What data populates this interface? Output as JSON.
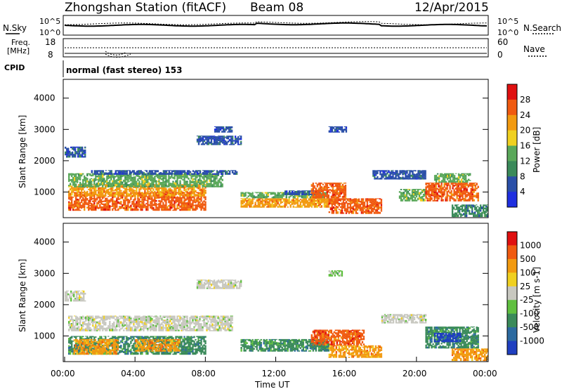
{
  "header": {
    "station": "Zhongshan Station (fitACF)",
    "beam": "Beam 08",
    "date": "12/Apr/2015"
  },
  "noise_panel": {
    "left_label": "N.Sky",
    "right_label": "N.Search",
    "left_ticks": [
      "10^5",
      "10^0"
    ],
    "right_ticks": [
      "10^5",
      "10^0"
    ]
  },
  "freq_panel": {
    "left_label_line1": "Freq.",
    "left_label_line2": "[MHz]",
    "left_ticks": [
      "18",
      "8"
    ],
    "right_label": "Nave",
    "right_ticks": [
      "60",
      "0"
    ]
  },
  "cpid": {
    "label": "CPID",
    "mode_text": "normal (fast stereo) 153"
  },
  "colors": {
    "power": [
      "#1f2fe0",
      "#2a4fa8",
      "#3a8a5a",
      "#5aa85a",
      "#f0d020",
      "#f29a10",
      "#f05a10",
      "#e01010"
    ],
    "velocity": [
      "#1f3fc0",
      "#2c6aa0",
      "#3a8a5a",
      "#60c040",
      "#c8c8c0",
      "#f0d020",
      "#f29a10",
      "#f05a10",
      "#e01010"
    ]
  },
  "chart_data": [
    {
      "type": "heatmap",
      "name": "power",
      "ylabel": "Slant Range [km]",
      "ylim": [
        180,
        4600
      ],
      "yticks": [
        "4000",
        "3000",
        "2000",
        "1000"
      ],
      "xlim": [
        "00:00",
        "24:00"
      ],
      "colorbar_label": "Power [dB]",
      "colorbar_ticks": [
        "28",
        "24",
        "20",
        "16",
        "12",
        "8",
        "4"
      ],
      "blobs": [
        {
          "t": [
            0.2,
            8.0
          ],
          "r": [
            400,
            1000
          ],
          "c": 6
        },
        {
          "t": [
            0.2,
            8.0
          ],
          "r": [
            850,
            1250
          ],
          "c": 5
        },
        {
          "t": [
            0.2,
            9.0
          ],
          "r": [
            1150,
            1600
          ],
          "c": 3
        },
        {
          "t": [
            1.5,
            9.8
          ],
          "r": [
            1550,
            1700
          ],
          "c": 1
        },
        {
          "t": [
            0.0,
            1.2
          ],
          "r": [
            2100,
            2450
          ],
          "c": 1
        },
        {
          "t": [
            7.5,
            10.0
          ],
          "r": [
            2500,
            2800
          ],
          "c": 1
        },
        {
          "t": [
            8.5,
            9.5
          ],
          "r": [
            2900,
            3100
          ],
          "c": 1
        },
        {
          "t": [
            10.0,
            15.0
          ],
          "r": [
            500,
            800
          ],
          "c": 5
        },
        {
          "t": [
            10.0,
            15.0
          ],
          "r": [
            800,
            1000
          ],
          "c": 3
        },
        {
          "t": [
            12.5,
            14.5
          ],
          "r": [
            900,
            1050
          ],
          "c": 1
        },
        {
          "t": [
            14.0,
            16.0
          ],
          "r": [
            800,
            1300
          ],
          "c": 6
        },
        {
          "t": [
            15.0,
            18.0
          ],
          "r": [
            300,
            800
          ],
          "c": 6
        },
        {
          "t": [
            15.0,
            16.0
          ],
          "r": [
            2900,
            3100
          ],
          "c": 1
        },
        {
          "t": [
            17.5,
            20.5
          ],
          "r": [
            1400,
            1700
          ],
          "c": 1
        },
        {
          "t": [
            19.0,
            20.5
          ],
          "r": [
            700,
            1100
          ],
          "c": 3
        },
        {
          "t": [
            20.5,
            23.5
          ],
          "r": [
            700,
            1300
          ],
          "c": 6
        },
        {
          "t": [
            21.0,
            23.0
          ],
          "r": [
            1300,
            1600
          ],
          "c": 3
        },
        {
          "t": [
            22.0,
            24.0
          ],
          "r": [
            200,
            600
          ],
          "c": 2
        }
      ]
    },
    {
      "type": "heatmap",
      "name": "velocity",
      "ylabel": "Slant Range [km]",
      "xlabel": "Time UT",
      "ylim": [
        180,
        4600
      ],
      "yticks": [
        "4000",
        "3000",
        "2000",
        "1000"
      ],
      "xticks": [
        "00:00",
        "04:00",
        "08:00",
        "12:00",
        "16:00",
        "20:00",
        "00:00"
      ],
      "colorbar_label": "Velocity [m s-1]",
      "colorbar_ticks": [
        "1000",
        "500",
        "100",
        "25",
        "-25",
        "-100",
        "-500",
        "-1000"
      ],
      "blobs": [
        {
          "t": [
            0.2,
            8.0
          ],
          "r": [
            400,
            1000
          ],
          "c": 2
        },
        {
          "t": [
            0.5,
            3.0
          ],
          "r": [
            400,
            900
          ],
          "c": 6
        },
        {
          "t": [
            4.0,
            6.5
          ],
          "r": [
            500,
            900
          ],
          "c": 6
        },
        {
          "t": [
            0.2,
            9.5
          ],
          "r": [
            1150,
            1650
          ],
          "c": 4
        },
        {
          "t": [
            0.0,
            1.2
          ],
          "r": [
            2100,
            2450
          ],
          "c": 4
        },
        {
          "t": [
            7.5,
            10.0
          ],
          "r": [
            2500,
            2800
          ],
          "c": 4
        },
        {
          "t": [
            10.0,
            15.0
          ],
          "r": [
            500,
            900
          ],
          "c": 2
        },
        {
          "t": [
            14.0,
            17.0
          ],
          "r": [
            700,
            1200
          ],
          "c": 7
        },
        {
          "t": [
            15.0,
            18.0
          ],
          "r": [
            300,
            700
          ],
          "c": 6
        },
        {
          "t": [
            18.0,
            20.5
          ],
          "r": [
            1400,
            1700
          ],
          "c": 4
        },
        {
          "t": [
            20.5,
            23.5
          ],
          "r": [
            600,
            1300
          ],
          "c": 2
        },
        {
          "t": [
            21.0,
            22.5
          ],
          "r": [
            800,
            1100
          ],
          "c": 0
        },
        {
          "t": [
            22.0,
            24.0
          ],
          "r": [
            200,
            600
          ],
          "c": 6
        },
        {
          "t": [
            15.0,
            15.8
          ],
          "r": [
            2900,
            3100
          ],
          "c": 3
        }
      ]
    }
  ]
}
